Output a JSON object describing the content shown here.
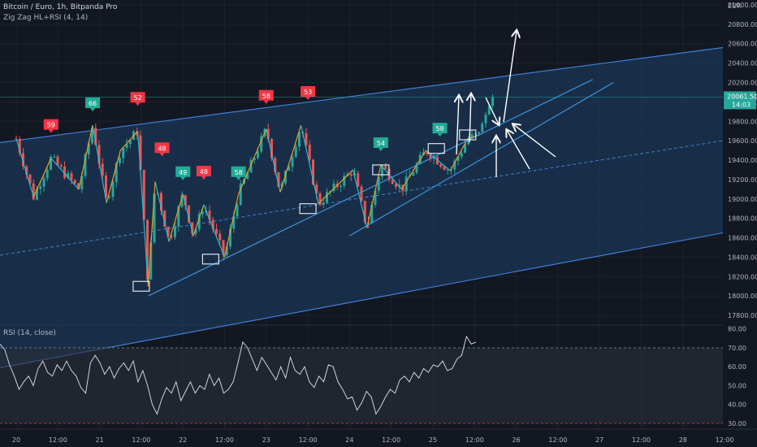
{
  "header": {
    "symbol": "Bitcoin / Euro, 1h, Bitpanda Pro",
    "indicator": "Zig Zag HL+RSI (4, 14)",
    "currency": "EUR"
  },
  "price": {
    "last": "20061.50",
    "countdown": "14:03",
    "ylim": [
      17700,
      21050
    ],
    "ticks": [
      "21000.00",
      "20800.00",
      "20600.00",
      "20400.00",
      "20200.00",
      "20000.00",
      "19800.00",
      "19600.00",
      "19400.00",
      "19200.00",
      "19000.00",
      "18800.00",
      "18600.00",
      "18400.00",
      "18200.00",
      "18000.00",
      "17800.00"
    ],
    "tick_values": [
      21000,
      20800,
      20600,
      20400,
      20200,
      20000,
      19800,
      19600,
      19400,
      19200,
      19000,
      18800,
      18600,
      18400,
      18200,
      18000,
      17800
    ]
  },
  "rsi": {
    "title": "RSI (14, close)",
    "ylim": [
      27,
      82
    ],
    "ticks": [
      "80.00",
      "70.00",
      "60.00",
      "50.00",
      "40.00",
      "30.00"
    ],
    "tick_values": [
      80,
      70,
      60,
      50,
      40,
      30
    ],
    "upper": 70,
    "lower": 30
  },
  "xaxis": {
    "labels": [
      "20",
      "12:00",
      "21",
      "12:00",
      "22",
      "12:00",
      "23",
      "12:00",
      "24",
      "12:00",
      "25",
      "12:00",
      "26",
      "12:00",
      "27",
      "12:00",
      "28",
      "12:00"
    ]
  },
  "chart_data": {
    "type": "line",
    "title": "Bitcoin / Euro, 1h, Bitpanda Pro",
    "series": [
      {
        "name": "Zig Zag HL+RSI (4, 14)",
        "x": [
          "20 00:00",
          "20 05:00",
          "20 10:00",
          "20 18:00",
          "20 22:00",
          "21 02:00",
          "21 06:00",
          "21 11:00",
          "21 14:00",
          "21 16:00",
          "21 20:00",
          "22 00:00",
          "22 03:00",
          "22 06:00",
          "22 12:00",
          "22 16:00",
          "23 00:00",
          "23 04:00",
          "23 10:00",
          "23 15:00",
          "24 01:00",
          "24 05:00",
          "24 09:00",
          "24 15:00",
          "24 22:00",
          "25 05:00",
          "25 10:00",
          "25 14:00"
        ],
        "values": [
          19620,
          19020,
          19420,
          19100,
          19760,
          18960,
          19500,
          19700,
          18100,
          19180,
          18560,
          19050,
          18620,
          18940,
          18400,
          19050,
          19720,
          19070,
          19760,
          18950,
          19300,
          18700,
          19350,
          19100,
          19500,
          19290,
          19620,
          19670
        ]
      }
    ],
    "zigzag_labels": [
      {
        "text": "59",
        "time": "20 10:00",
        "price": 19420,
        "color": "red"
      },
      {
        "text": "66",
        "time": "20 22:00",
        "price": 19760,
        "color": "green"
      },
      {
        "text": "52",
        "time": "21 11:00",
        "price": 19700,
        "color": "red"
      },
      {
        "text": "48",
        "time": "21 18:00",
        "price": 19180,
        "color": "red"
      },
      {
        "text": "49",
        "time": "22 00:00",
        "price": 19050,
        "color": "green"
      },
      {
        "text": "48",
        "time": "22 06:00",
        "price": 18940,
        "color": "red"
      },
      {
        "text": "58",
        "time": "22 16:00",
        "price": 19050,
        "color": "green"
      },
      {
        "text": "58",
        "time": "23 00:00",
        "price": 19720,
        "color": "red"
      },
      {
        "text": "53",
        "time": "23 12:00",
        "price": 19760,
        "color": "red"
      },
      {
        "text": "54",
        "time": "24 09:00",
        "price": 19350,
        "color": "green"
      },
      {
        "text": "58",
        "time": "25 02:00",
        "price": 19500,
        "color": "green"
      }
    ],
    "rsi_series": {
      "name": "RSI (14, close)",
      "values": [
        72,
        69,
        61,
        55,
        48,
        52,
        55,
        50,
        59,
        63,
        57,
        55,
        61,
        58,
        63,
        58,
        55,
        49,
        46,
        62,
        66,
        62,
        56,
        60,
        54,
        59,
        62,
        58,
        63,
        52,
        58,
        50,
        40,
        35,
        43,
        49,
        46,
        52,
        42,
        47,
        52,
        46,
        50,
        48,
        56,
        50,
        54,
        46,
        48,
        52,
        62,
        73,
        70,
        64,
        58,
        65,
        61,
        57,
        53,
        60,
        54,
        65,
        58,
        56,
        60,
        52,
        49,
        55,
        52,
        61,
        60,
        52,
        48,
        43,
        44,
        37,
        41,
        47,
        44,
        35,
        39,
        44,
        48,
        46,
        53,
        55,
        52,
        57,
        54,
        59,
        57,
        61,
        60,
        63,
        58,
        59,
        64,
        66,
        76,
        72,
        73
      ]
    },
    "ylabel": "EUR"
  }
}
